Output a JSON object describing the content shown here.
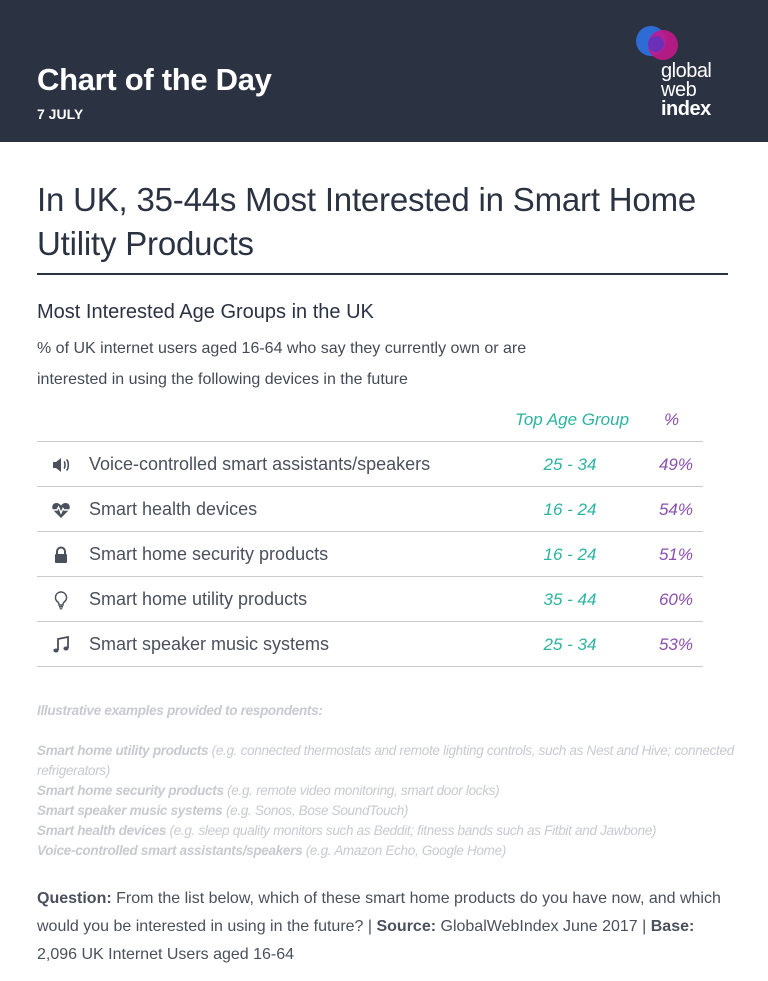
{
  "header": {
    "title": "Chart of the Day",
    "date": "7 JULY",
    "logo": {
      "line1": "global",
      "line2": "web",
      "line3": "index"
    },
    "colors": {
      "background": "#2b3242",
      "logo_blue": "#2f6fdc",
      "logo_magenta": "#c2188c",
      "logo_purple": "#6b2fb8"
    }
  },
  "headline": "In UK, 35-44s Most Interested in Smart Home Utility Products",
  "chart_title": "Most Interested Age Groups in the UK",
  "chart_subtitle": "% of UK internet users aged 16-64 who say they currently own or are interested in using the following devices in the future",
  "chart_data": {
    "type": "table",
    "title": "Most Interested Age Groups in the UK",
    "columns": [
      "",
      "Top Age Group",
      "%"
    ],
    "rows": [
      {
        "icon": "speaker-icon",
        "label": "Voice-controlled smart assistants/speakers",
        "age_group": "25 - 34",
        "percent": "49%"
      },
      {
        "icon": "heartbeat-icon",
        "label": "Smart health devices",
        "age_group": "16 - 24",
        "percent": "54%"
      },
      {
        "icon": "lock-icon",
        "label": "Smart home security products",
        "age_group": "16 - 24",
        "percent": "51%"
      },
      {
        "icon": "lightbulb-icon",
        "label": "Smart home utility products",
        "age_group": "35 - 44",
        "percent": "60%"
      },
      {
        "icon": "music-note-icon",
        "label": "Smart speaker music systems",
        "age_group": "25 - 34",
        "percent": "53%"
      }
    ],
    "colors": {
      "age_group": "#2bb5a0",
      "percent": "#8a4fb0"
    }
  },
  "notes": {
    "heading": "Illustrative examples provided to respondents:",
    "items": [
      {
        "term": "Smart home utility products",
        "detail": " (e.g. connected thermostats and remote lighting controls, such as Nest and Hive; connected refrigerators)"
      },
      {
        "term": "Smart home security products",
        "detail": " (e.g. remote video monitoring, smart door locks)"
      },
      {
        "term": "Smart speaker music systems",
        "detail": " (e.g. Sonos, Bose SoundTouch)"
      },
      {
        "term": "Smart health devices",
        "detail": " (e.g. sleep quality monitors such as Beddit; fitness bands such as Fitbit and Jawbone)"
      },
      {
        "term": "Voice-controlled smart assistants/speakers",
        "detail": " (e.g. Amazon Echo, Google Home)"
      }
    ]
  },
  "footer": {
    "question_label": "Question:",
    "question_text": " From the list below, which of these smart home products do you have now, and which would you be interested in using in the future?",
    "sep1": " | ",
    "source_label": "Source:",
    "source_text": " GlobalWebIndex June 2017",
    "sep2": " | ",
    "base_label": "Base:",
    "base_text": " 2,096 UK Internet Users aged 16-64"
  }
}
